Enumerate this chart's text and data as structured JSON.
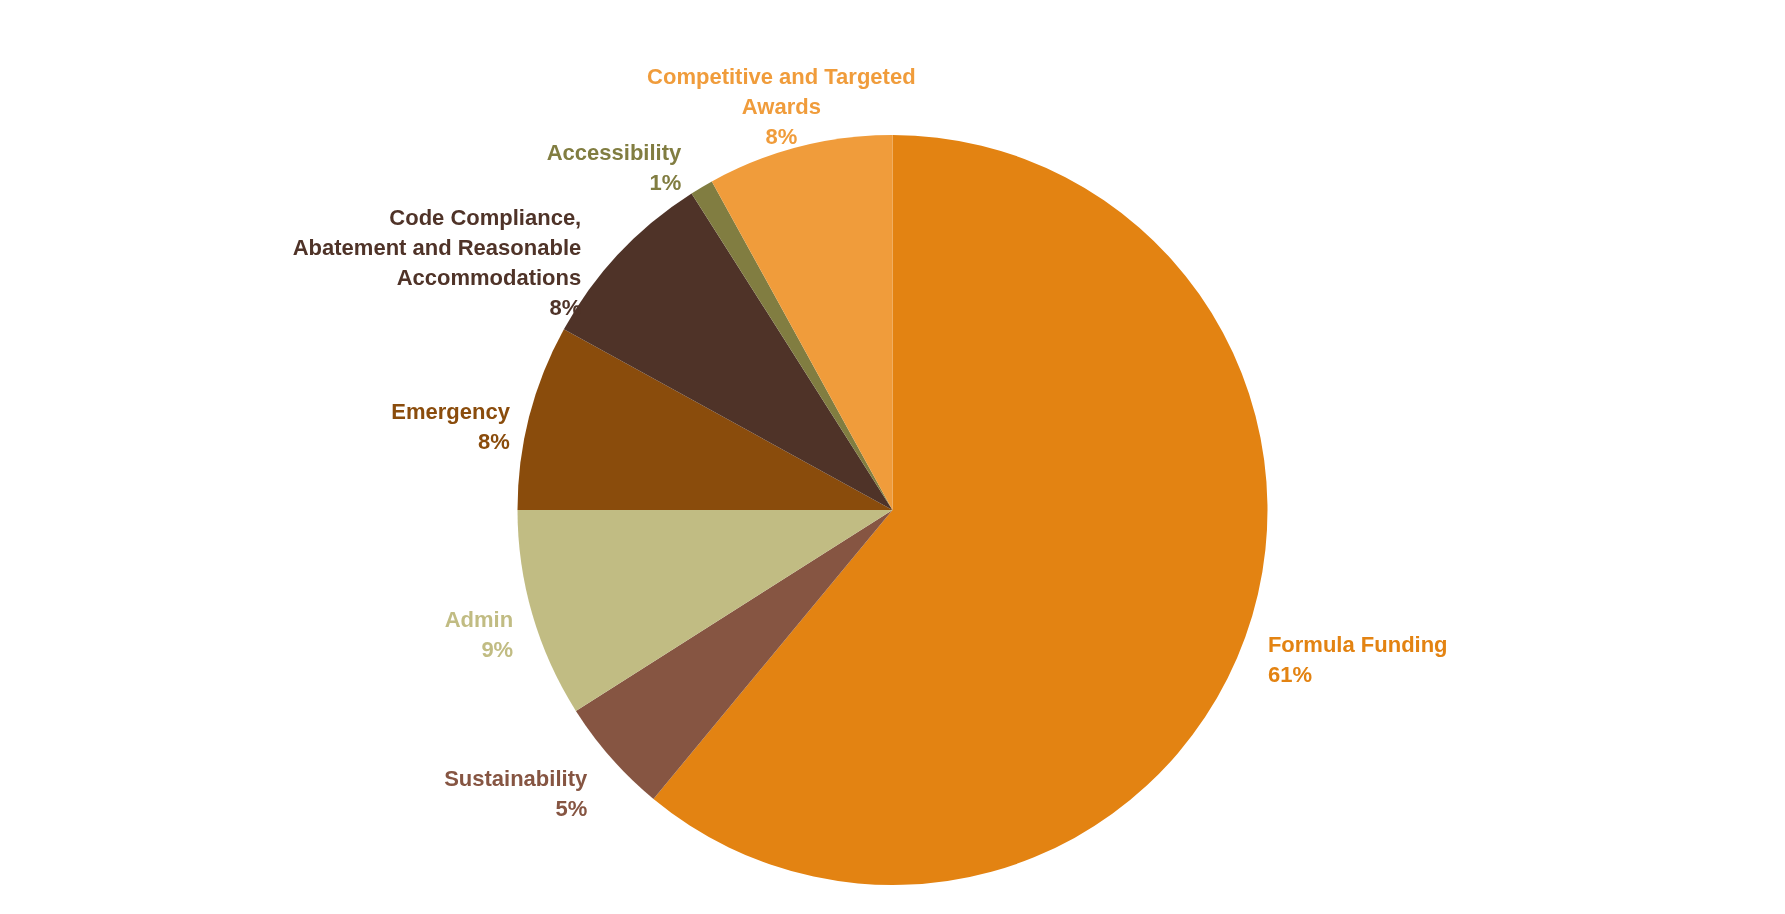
{
  "chart_data": {
    "type": "pie",
    "categories": [
      "Formula Funding",
      "Sustainability",
      "Admin",
      "Emergency",
      "Code Compliance, Abatement and Reasonable Accommodations",
      "Accessibility",
      "Competitive and Targeted Awards"
    ],
    "values": [
      61,
      5,
      9,
      8,
      8,
      1,
      8
    ],
    "value_labels": [
      "61%",
      "5%",
      "9%",
      "8%",
      "8%",
      "1%",
      "8%"
    ],
    "colors": [
      "#e38312",
      "#865542",
      "#c1bc83",
      "#8a4c0c",
      "#4f3328",
      "#817d41",
      "#f09c3b"
    ]
  }
}
